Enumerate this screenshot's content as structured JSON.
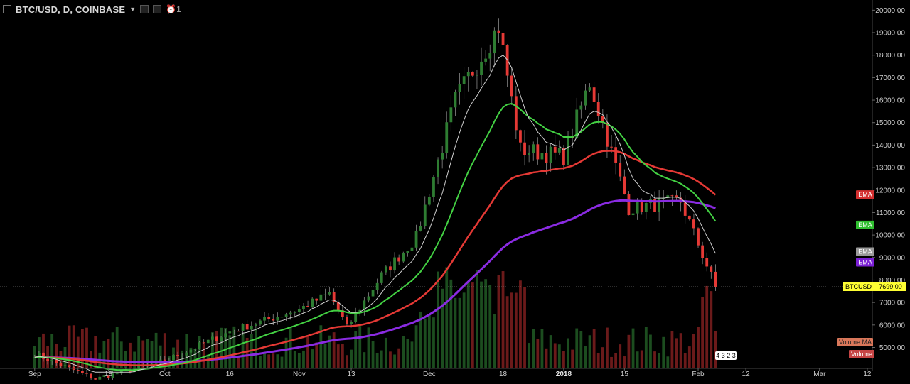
{
  "header": {
    "symbol": "BTC/USD, D, COINBASE",
    "alert_count": "1"
  },
  "colors": {
    "background": "#000000",
    "up": "#2e7d32",
    "down": "#e53935",
    "ema_red": "#e53935",
    "ema_green": "#43d143",
    "ema_white": "#d0d0d0",
    "ema_purple": "#8a2be2",
    "volume_ma": "#e0a080",
    "last_price_tag": "#ffff33"
  },
  "chart_data": {
    "type": "candlestick",
    "symbol": "BTCUSD",
    "timeframe": "D",
    "exchange": "COINBASE",
    "x_range": [
      "2017-08-24",
      "2018-03-13"
    ],
    "ylim": [
      4100,
      20200
    ],
    "y_ticks": [
      "20000.00",
      "19000.00",
      "18000.00",
      "17000.00",
      "16000.00",
      "15000.00",
      "14000.00",
      "13000.00",
      "12000.00",
      "11000.00",
      "10000.00",
      "9000.00",
      "8000.00",
      "7000.00",
      "6000.00",
      "5000.00"
    ],
    "x_ticks": [
      {
        "label": "Sep",
        "date": "2017-09-01",
        "bold": false
      },
      {
        "label": "18",
        "date": "2017-09-18",
        "bold": false
      },
      {
        "label": "Oct",
        "date": "2017-10-01",
        "bold": false
      },
      {
        "label": "16",
        "date": "2017-10-16",
        "bold": false
      },
      {
        "label": "Nov",
        "date": "2017-11-01",
        "bold": false
      },
      {
        "label": "13",
        "date": "2017-11-13",
        "bold": false
      },
      {
        "label": "Dec",
        "date": "2017-12-01",
        "bold": false
      },
      {
        "label": "18",
        "date": "2017-12-18",
        "bold": false
      },
      {
        "label": "2018",
        "date": "2018-01-01",
        "bold": true
      },
      {
        "label": "15",
        "date": "2018-01-15",
        "bold": false
      },
      {
        "label": "Feb",
        "date": "2018-02-01",
        "bold": false
      },
      {
        "label": "12",
        "date": "2018-02-12",
        "bold": false
      },
      {
        "label": "Mar",
        "date": "2018-03-01",
        "bold": false
      },
      {
        "label": "12",
        "date": "2018-03-12",
        "bold": false
      }
    ],
    "last_price": {
      "label": "BTCUSD",
      "value": "7699.00",
      "numeric": 7699
    },
    "indicator_labels": [
      "EMA",
      "EMA",
      "EMA",
      "EMA",
      "Volume MA",
      "Volume"
    ],
    "ema_end_values": {
      "red": 11800,
      "green": 10450,
      "white": 9200,
      "purple": 8850
    },
    "volume_overlay": "4 3 2 3",
    "key_closes": [
      {
        "date": "2017-09-01",
        "close": 4700
      },
      {
        "date": "2017-09-15",
        "close": 3600
      },
      {
        "date": "2017-10-01",
        "close": 4400
      },
      {
        "date": "2017-10-16",
        "close": 5700
      },
      {
        "date": "2017-11-01",
        "close": 6700
      },
      {
        "date": "2017-11-08",
        "close": 7400
      },
      {
        "date": "2017-11-12",
        "close": 5900
      },
      {
        "date": "2017-11-20",
        "close": 8200
      },
      {
        "date": "2017-11-28",
        "close": 9900
      },
      {
        "date": "2017-12-07",
        "close": 16000
      },
      {
        "date": "2017-12-17",
        "close": 19300
      },
      {
        "date": "2017-12-22",
        "close": 13800
      },
      {
        "date": "2018-01-01",
        "close": 13500
      },
      {
        "date": "2018-01-07",
        "close": 16800
      },
      {
        "date": "2018-01-16",
        "close": 11200
      },
      {
        "date": "2018-01-28",
        "close": 11500
      },
      {
        "date": "2018-02-05",
        "close": 7699
      }
    ]
  }
}
